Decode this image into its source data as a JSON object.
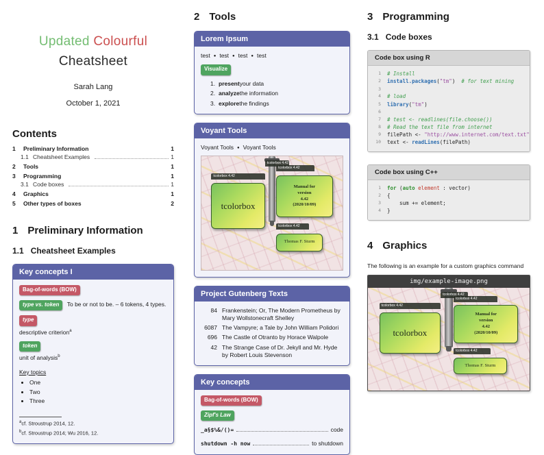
{
  "page": {
    "title_word1": "Updated",
    "title_word2": "Colourful",
    "title_word3": "Cheatsheet",
    "author": "Sarah Lang",
    "date": "October 1, 2021"
  },
  "toc": {
    "heading": "Contents",
    "entries": [
      {
        "num": "1",
        "label": "Preliminary Information",
        "page": "1"
      },
      {
        "num": "1.1",
        "label": "Cheatsheet Examples",
        "page": "1"
      },
      {
        "num": "2",
        "label": "Tools",
        "page": "1"
      },
      {
        "num": "3",
        "label": "Programming",
        "page": "1"
      },
      {
        "num": "3.1",
        "label": "Code boxes",
        "page": "1"
      },
      {
        "num": "4",
        "label": "Graphics",
        "page": "1"
      },
      {
        "num": "5",
        "label": "Other types of boxes",
        "page": "2"
      }
    ]
  },
  "sec1": {
    "num": "1",
    "title": "Preliminary Information",
    "subnum": "1.1",
    "subtitle": "Cheatsheet Examples"
  },
  "kc1": {
    "title": "Key concepts I",
    "badge_bow": "Bag-of-words (BOW)",
    "badge_tvt": "type vs. token",
    "tvt_text": "To be or not to be. – 6 tokens, 4 types.",
    "badge_type": "type",
    "type_desc": "descriptive criterion",
    "type_fn": "a",
    "badge_token": "token",
    "token_desc": "unit of analysis",
    "token_fn": "b",
    "topics_label": "Key topics",
    "topics": [
      "One",
      "Two",
      "Three"
    ],
    "fn_a_mark": "a",
    "fn_a": "cf. Stroustrup 2014, 12.",
    "fn_b_mark": "b",
    "fn_b": "cf. Stroustrup 2014; Wu 2016, 12."
  },
  "sec2": {
    "num": "2",
    "title": "Tools"
  },
  "lorem": {
    "title": "Lorem Ipsum",
    "items": [
      "test",
      "test",
      "test",
      "test"
    ],
    "sep": "●",
    "badge": "Visualize",
    "steps": [
      {
        "n": "1.",
        "b": "present",
        "r": " your data"
      },
      {
        "n": "2.",
        "b": "analyze",
        "r": " the information"
      },
      {
        "n": "3.",
        "b": "explore",
        "r": " the findings"
      }
    ]
  },
  "voyant": {
    "title": "Voyant Tools",
    "sub1": "Voyant Tools",
    "sep": "●",
    "sub2": "Voyant Tools"
  },
  "gutenberg": {
    "title": "Project Gutenberg Texts",
    "rows": [
      {
        "id": "84",
        "text": "Frankenstein; Or, The Modern Prometheus by Mary Wollstonecraft Shelley"
      },
      {
        "id": "6087",
        "text": "The Vampyre; a Tale by John William Polidori"
      },
      {
        "id": "696",
        "text": "The Castle of Otranto by Horace Walpole"
      },
      {
        "id": "42",
        "text": "The Strange Case of Dr. Jekyll and Mr. Hyde by Robert Louis Stevenson"
      }
    ]
  },
  "kc2": {
    "title": "Key concepts",
    "badge_bow": "Bag-of-words (BOW)",
    "badge_zipf": "Zipf's Law",
    "lines": [
      {
        "left": "_a§$%&/()=",
        "right": "code"
      },
      {
        "left": "shutdown -h now",
        "right": "to shutdown"
      }
    ]
  },
  "sec3": {
    "num": "3",
    "title": "Programming",
    "subnum": "3.1",
    "subtitle": "Code boxes"
  },
  "code_r": {
    "title": "Code box using R",
    "lines": [
      {
        "n": "1",
        "segs": [
          {
            "t": "# Install",
            "c": "com"
          }
        ]
      },
      {
        "n": "2",
        "segs": [
          {
            "t": "install.packages",
            "c": "fn"
          },
          {
            "t": "(",
            "c": "pl"
          },
          {
            "t": "\"tm\"",
            "c": "str"
          },
          {
            "t": ")",
            "c": "pl"
          },
          {
            "t": "  # for text mining",
            "c": "com"
          }
        ]
      },
      {
        "n": "3",
        "segs": []
      },
      {
        "n": "4",
        "segs": [
          {
            "t": "# load",
            "c": "com"
          }
        ]
      },
      {
        "n": "5",
        "segs": [
          {
            "t": "library",
            "c": "fn"
          },
          {
            "t": "(",
            "c": "pl"
          },
          {
            "t": "\"tm\"",
            "c": "str"
          },
          {
            "t": ")",
            "c": "pl"
          }
        ]
      },
      {
        "n": "6",
        "segs": []
      },
      {
        "n": "7",
        "segs": [
          {
            "t": "# test <- readlines(file.choose())",
            "c": "com"
          }
        ]
      },
      {
        "n": "8",
        "segs": [
          {
            "t": "# Read the text file from internet",
            "c": "com"
          }
        ]
      },
      {
        "n": "9",
        "segs": [
          {
            "t": "filePath ",
            "c": "pl"
          },
          {
            "t": "<- ",
            "c": "op"
          },
          {
            "t": "\"http://www.internet.com/text.txt\"",
            "c": "str"
          }
        ]
      },
      {
        "n": "10",
        "segs": [
          {
            "t": "text ",
            "c": "pl"
          },
          {
            "t": "<- ",
            "c": "op"
          },
          {
            "t": "readLines",
            "c": "fn"
          },
          {
            "t": "(filePath)",
            "c": "pl"
          }
        ]
      }
    ]
  },
  "code_cpp": {
    "title": "Code box using C++",
    "lines": [
      {
        "n": "1",
        "segs": [
          {
            "t": "for",
            "c": "kw"
          },
          {
            "t": " (",
            "c": "pl"
          },
          {
            "t": "auto",
            "c": "kw"
          },
          {
            "t": " ",
            "c": "pl"
          },
          {
            "t": "element",
            "c": "id"
          },
          {
            "t": " : vector)",
            "c": "pl"
          }
        ]
      },
      {
        "n": "2",
        "segs": [
          {
            "t": "{",
            "c": "pl"
          }
        ]
      },
      {
        "n": "3",
        "segs": [
          {
            "t": "    sum += element;",
            "c": "pl"
          }
        ]
      },
      {
        "n": "4",
        "segs": [
          {
            "t": "}",
            "c": "pl"
          }
        ]
      }
    ]
  },
  "sec4": {
    "num": "4",
    "title": "Graphics",
    "intro": "The following is an example for a custom graphics command",
    "img_title": "img/example-image.png"
  },
  "tcb": {
    "bar_label": "tcolorbox 4.42",
    "main": "tcolorbox",
    "manual_l1": "Manual for",
    "manual_l2": "version",
    "manual_l3": "4.42",
    "manual_l4": "(2020/10/09)",
    "author": "Thomas F. Sturm"
  },
  "colors": {
    "accent_purple": "#5c63a6",
    "badge_red": "#c45866",
    "badge_green": "#4fa45f",
    "title_green": "#74bd72",
    "title_red": "#cb4f4f",
    "code_header_gray": "#d6d6d6",
    "image_header_dark": "#3f3f3f"
  }
}
